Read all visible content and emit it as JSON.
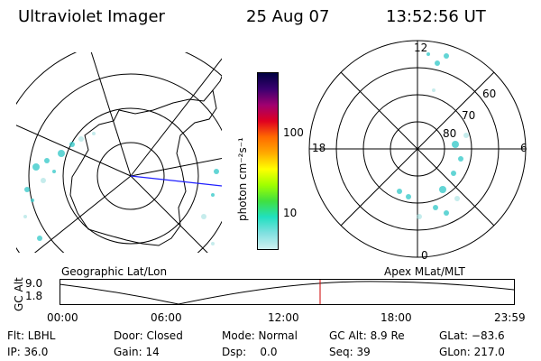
{
  "header": {
    "instrument": "Ultraviolet Imager",
    "date": "25 Aug 07",
    "time": "13:52:56 UT"
  },
  "left_panel": {
    "caption": "Geographic Lat/Lon"
  },
  "right_panel": {
    "caption": "Apex MLat/MLT",
    "mlt_labels": {
      "top": "12",
      "left": "18",
      "right": "6",
      "bottom": "0"
    },
    "lat_labels": [
      "60",
      "70",
      "80"
    ]
  },
  "colorbar": {
    "unit_label": "photon cm⁻²s⁻¹",
    "ticks": [
      "100",
      "10"
    ],
    "colors": [
      "#000040",
      "#3a0070",
      "#a00070",
      "#e00020",
      "#ff6a00",
      "#ffaa00",
      "#ffff00",
      "#a0ff00",
      "#40e040",
      "#20e0c0",
      "#80e0e0",
      "#d0f0f0"
    ]
  },
  "altitude_plot": {
    "ylabel": "GC Alt",
    "y_ticks": [
      "9.0",
      "1.8"
    ],
    "x_ticks": [
      "00:00",
      "06:00",
      "12:00",
      "18:00",
      "23:59"
    ],
    "marker_color": "#cc0000"
  },
  "info": {
    "flt": "Flt: LBHL",
    "ip": "IP: 36.0",
    "door": "Door: Closed",
    "gain": "Gain: 14",
    "mode": "Mode: Normal",
    "dsp": "Dsp:    0.0",
    "gcalt": "GC Alt: 8.9 Re",
    "seq": "Seq: 39",
    "glat": "GLat: −83.6",
    "glon": "GLon: 217.0"
  }
}
